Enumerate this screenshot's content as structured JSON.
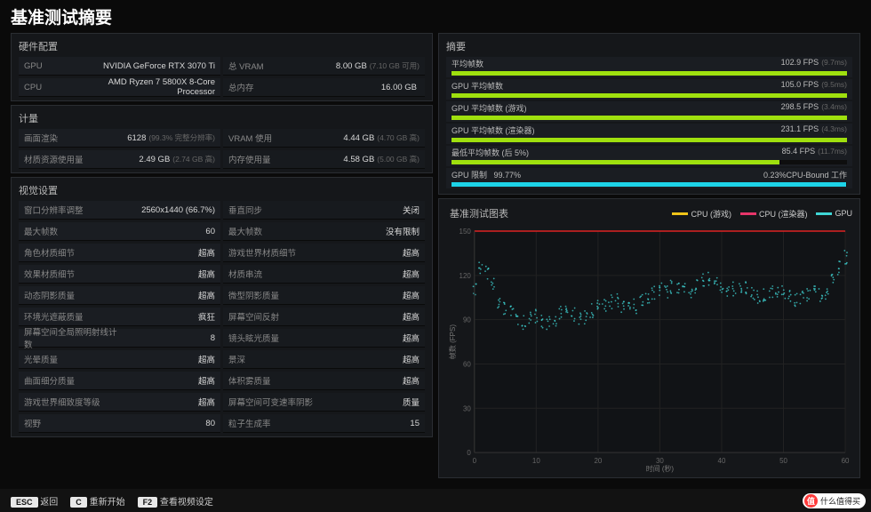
{
  "title": "基准测试摘要",
  "left": {
    "hw": {
      "header": "硬件配置",
      "rows": [
        [
          "GPU",
          "NVIDIA GeForce RTX 3070 Ti",
          "总 VRAM",
          "8.00 GB",
          "(7.10 GB 可用)"
        ],
        [
          "CPU",
          "AMD Ryzen 7 5800X 8-Core Processor",
          "总内存",
          "16.00 GB",
          ""
        ]
      ]
    },
    "metrics": {
      "header": "计量",
      "rows": [
        [
          "画面渲染",
          "6128",
          "(99.3% 完整分辨率)",
          "VRAM 使用",
          "4.44 GB",
          "(4.70 GB 高)"
        ],
        [
          "材质资源使用量",
          "2.49 GB",
          "(2.74 GB 高)",
          "内存使用量",
          "4.58 GB",
          "(5.00 GB 高)"
        ]
      ]
    },
    "vis": {
      "header": "视觉设置",
      "rows": [
        [
          "窗口分辨率调整",
          "2560x1440 (66.7%)",
          "垂直同步",
          "关闭"
        ],
        [
          "最大帧数",
          "60",
          "最大帧数",
          "没有限制"
        ],
        [
          "角色材质细节",
          "超高",
          "游戏世界材质细节",
          "超高"
        ],
        [
          "效果材质细节",
          "超高",
          "材质串流",
          "超高"
        ],
        [
          "动态阴影质量",
          "超高",
          "微型阴影质量",
          "超高"
        ],
        [
          "环境光遮蔽质量",
          "疯狂",
          "屏幕空间反射",
          "超高"
        ],
        [
          "屏幕空间全局照明射线计数",
          "8",
          "镜头眩光质量",
          "超高"
        ],
        [
          "光晕质量",
          "超高",
          "景深",
          "超高"
        ],
        [
          "曲面细分质量",
          "超高",
          "体积雾质量",
          "超高"
        ],
        [
          "游戏世界细致度等级",
          "超高",
          "屏幕空间可变速率阴影",
          "质量"
        ],
        [
          "视野",
          "80",
          "粒子生成率",
          "15"
        ]
      ]
    }
  },
  "right": {
    "summary": {
      "header": "摘要",
      "bars": [
        {
          "label": "平均帧数",
          "val": "102.9 FPS",
          "sub": "(9.7ms)",
          "pct": 100,
          "color": "#9fe00e"
        },
        {
          "label": "GPU 平均帧数",
          "val": "105.0 FPS",
          "sub": "(9.5ms)",
          "pct": 100,
          "color": "#9fe00e"
        },
        {
          "label": "GPU 平均帧数 (游戏)",
          "val": "298.5 FPS",
          "sub": "(3.4ms)",
          "pct": 100,
          "color": "#9fe00e"
        },
        {
          "label": "GPU 平均帧数 (渲染器)",
          "val": "231.1 FPS",
          "sub": "(4.3ms)",
          "pct": 100,
          "color": "#9fe00e"
        },
        {
          "label": "最低平均帧数 (后 5%)",
          "val": "85.4 FPS",
          "sub": "(11.7ms)",
          "pct": 83,
          "color": "#9fe00e"
        }
      ],
      "limit": {
        "label": "GPU 限制",
        "left": "99.77%",
        "right": "0.23%CPU-Bound 工作",
        "cyan": 99.77
      }
    },
    "chart": {
      "header": "基准测试图表",
      "legend": [
        {
          "label": "CPU (游戏)",
          "color": "#f0c419"
        },
        {
          "label": "CPU (渲染器)",
          "color": "#e6356a"
        },
        {
          "label": "GPU",
          "color": "#3fd6d6"
        }
      ],
      "xlim": [
        0,
        60
      ],
      "ylim": [
        0,
        150
      ],
      "xstep": 10,
      "ystep": 30,
      "xlabel": "时间 (秒)",
      "ylabel": "帧数 (FPS)",
      "background": "#111316",
      "grid_color": "#222",
      "axis_color": "#333",
      "redline_y": 150,
      "gpu_data": [
        110,
        125,
        122,
        113,
        103,
        98,
        95,
        90,
        88,
        90,
        92,
        89,
        87,
        88,
        94,
        95,
        93,
        91,
        92,
        96,
        99,
        100,
        102,
        103,
        98,
        97,
        99,
        103,
        106,
        108,
        110,
        109,
        112,
        113,
        110,
        108,
        113,
        117,
        118,
        116,
        112,
        110,
        111,
        113,
        112,
        108,
        106,
        107,
        109,
        110,
        108,
        106,
        104,
        105,
        107,
        108,
        106,
        107,
        118,
        125,
        132
      ]
    }
  },
  "footer": {
    "esc": {
      "key": "ESC",
      "label": "返回"
    },
    "c": {
      "key": "C",
      "label": "重新开始"
    },
    "f2": {
      "key": "F2",
      "label": "查看视频设定"
    }
  },
  "badge": {
    "icon": "值",
    "text": "什么值得买"
  }
}
